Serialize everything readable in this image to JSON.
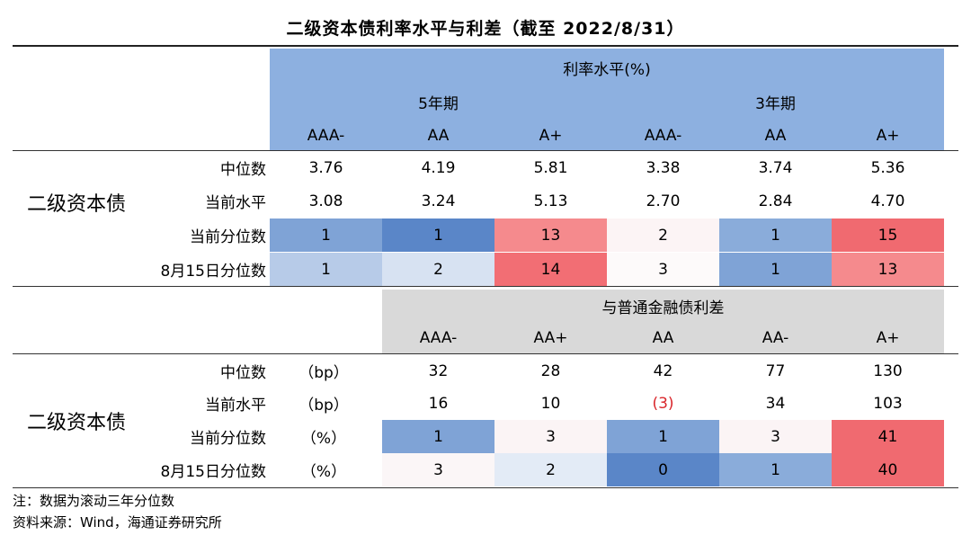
{
  "title": "二级资本债利率水平与利差（截至 2022/8/31）",
  "colors": {
    "header_blue": "#8db0e0",
    "header_gray": "#d9d9d9",
    "negative_text": "#d9262b"
  },
  "table1": {
    "group_header": "利率水平(%)",
    "term_headers": [
      "5年期",
      "3年期"
    ],
    "rating_headers": [
      "AAA-",
      "AA",
      "A+",
      "AAA-",
      "AA",
      "A+"
    ],
    "category": "二级资本债",
    "rows": [
      {
        "label": "中位数",
        "values": [
          "3.76",
          "4.19",
          "5.81",
          "3.38",
          "3.74",
          "5.36"
        ]
      },
      {
        "label": "当前水平",
        "values": [
          "3.08",
          "3.24",
          "5.13",
          "2.70",
          "2.84",
          "4.70"
        ]
      },
      {
        "label": "当前分位数",
        "values": [
          "1",
          "1",
          "13",
          "2",
          "1",
          "15"
        ],
        "colors": [
          "#7fa3d6",
          "#5a86c8",
          "#f58a8d",
          "#fcf4f5",
          "#8aacda",
          "#f06a70"
        ]
      },
      {
        "label": "8月15日分位数",
        "values": [
          "1",
          "2",
          "14",
          "3",
          "1",
          "13"
        ],
        "colors": [
          "#b7cbe8",
          "#d7e2f2",
          "#f26e74",
          "#fdfafa",
          "#7fa3d6",
          "#f58a8d"
        ]
      }
    ]
  },
  "table2": {
    "group_header": "与普通金融债利差",
    "rating_headers": [
      "AAA-",
      "AA+",
      "AA",
      "AA-",
      "A+"
    ],
    "category": "二级资本债",
    "rows": [
      {
        "label": "中位数",
        "unit": "（bp）",
        "values": [
          "32",
          "28",
          "42",
          "77",
          "130"
        ]
      },
      {
        "label": "当前水平",
        "unit": "（bp）",
        "values": [
          "16",
          "10",
          "(3)",
          "34",
          "103"
        ]
      },
      {
        "label": "当前分位数",
        "unit": "（%）",
        "values": [
          "1",
          "3",
          "1",
          "3",
          "41"
        ],
        "colors": [
          "#7fa3d6",
          "#fbf4f5",
          "#7fa3d6",
          "#fbf4f5",
          "#f06a70"
        ]
      },
      {
        "label": "8月15日分位数",
        "unit": "（%）",
        "values": [
          "3",
          "2",
          "0",
          "1",
          "40"
        ],
        "colors": [
          "#fbf6f7",
          "#e3ebf6",
          "#5a86c8",
          "#8aacda",
          "#f06a70"
        ]
      }
    ]
  },
  "notes": {
    "note1": "注：数据为滚动三年分位数",
    "source": "资料来源：Wind，海通证券研究所"
  }
}
